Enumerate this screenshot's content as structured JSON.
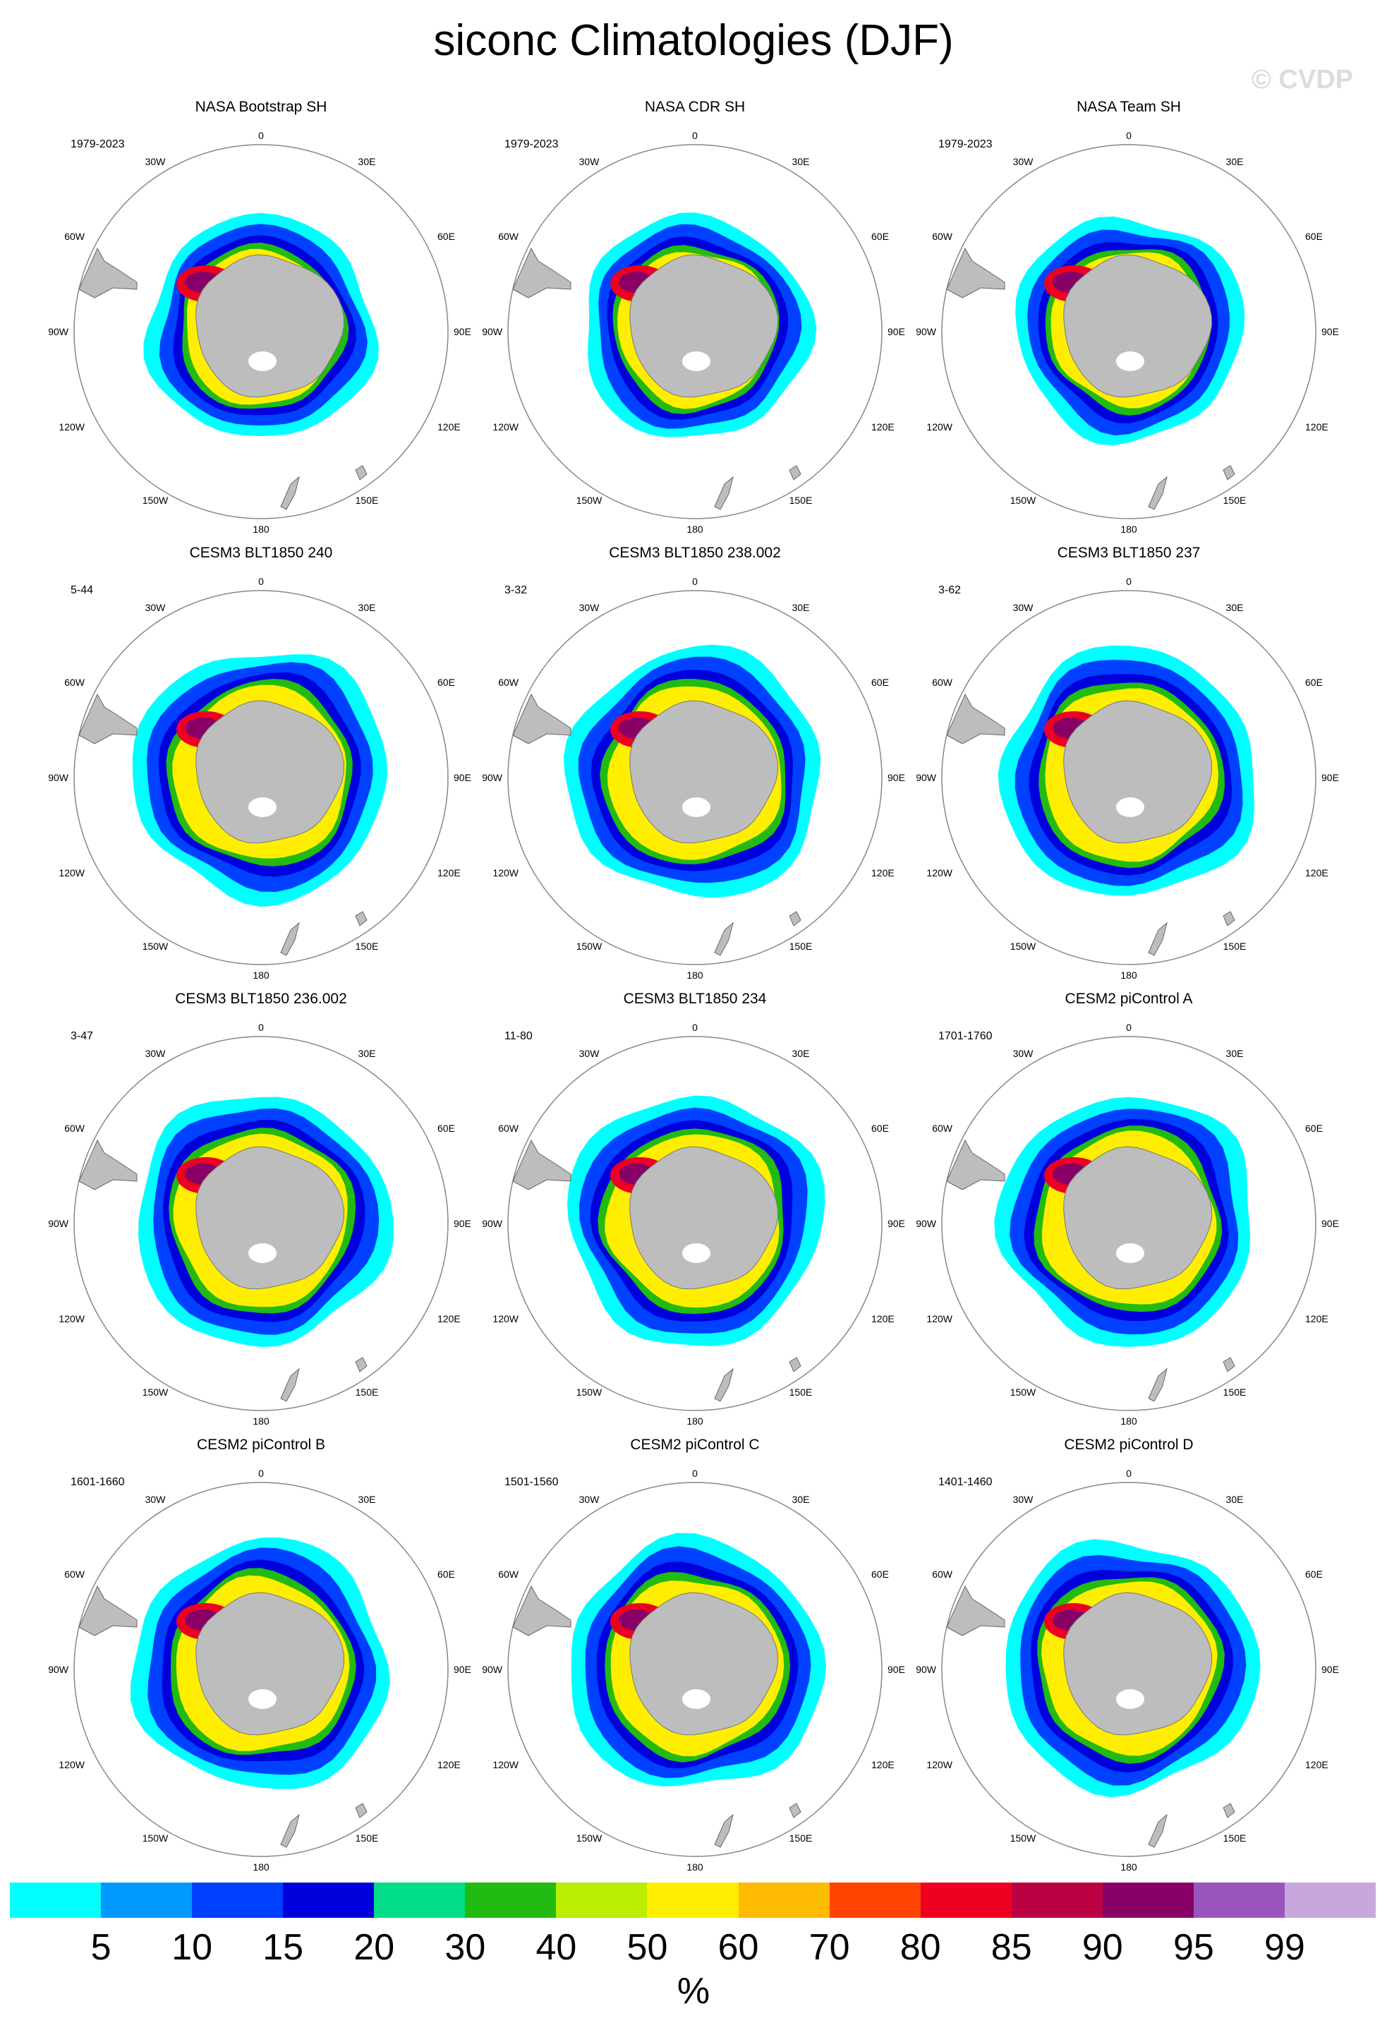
{
  "title": "siconc Climatologies (DJF)",
  "watermark": "© CVDP",
  "lon_labels": {
    "top": "0",
    "bottom": "180",
    "l30": "30W",
    "r30": "30E",
    "l60": "60W",
    "r60": "60E",
    "l90": "90W",
    "r90": "90E",
    "l120": "120W",
    "r120": "120E",
    "l150": "150W",
    "r150": "150E"
  },
  "panels": [
    {
      "title": "NASA Bootstrap SH",
      "years": "1979-2023"
    },
    {
      "title": "NASA CDR SH",
      "years": "1979-2023"
    },
    {
      "title": "NASA Team SH",
      "years": "1979-2023"
    },
    {
      "title": "CESM3 BLT1850 240",
      "years": "5-44"
    },
    {
      "title": "CESM3 BLT1850 238.002",
      "years": "3-32"
    },
    {
      "title": "CESM3 BLT1850 237",
      "years": "3-62"
    },
    {
      "title": "CESM3 BLT1850 236.002",
      "years": "3-47"
    },
    {
      "title": "CESM3 BLT1850 234",
      "years": "11-80"
    },
    {
      "title": "CESM2 piControl A",
      "years": "1701-1760"
    },
    {
      "title": "CESM2 piControl B",
      "years": "1601-1660"
    },
    {
      "title": "CESM2 piControl C",
      "years": "1501-1560"
    },
    {
      "title": "CESM2 piControl D",
      "years": "1401-1460"
    }
  ],
  "colorbar": {
    "colors": [
      "#00ffff",
      "#0099ff",
      "#0040ff",
      "#0000dd",
      "#00dd88",
      "#22bb11",
      "#bbee00",
      "#ffee00",
      "#ffbb00",
      "#ff4400",
      "#ee0022",
      "#bb0044",
      "#880066",
      "#9955bb",
      "#c8a8dc"
    ],
    "ticks": [
      "5",
      "10",
      "15",
      "20",
      "30",
      "40",
      "50",
      "60",
      "70",
      "80",
      "85",
      "90",
      "95",
      "99"
    ],
    "unit": "%"
  },
  "colors": {
    "land": "#bdbdbd",
    "circle": "#888888",
    "ice_outer": "#00ffff",
    "ice_mid": "#0040ff",
    "ice_inner": "#0000dd",
    "ice_green": "#22bb11",
    "ice_yellow": "#ffee00",
    "ice_red": "#ee0022",
    "ice_purple": "#880066"
  }
}
